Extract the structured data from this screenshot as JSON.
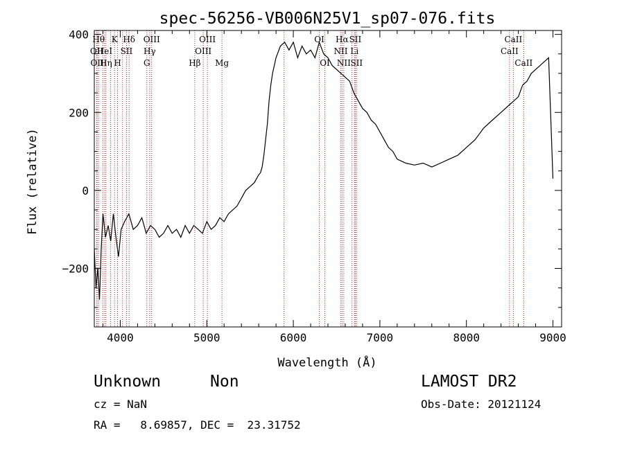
{
  "chart_data": {
    "type": "line",
    "title": "spec-56256-VB006N25V1_sp07-076.fits",
    "xlabel": "Wavelength (Å)",
    "ylabel": "Flux (relative)",
    "xlim": [
      3700,
      9100
    ],
    "ylim": [
      -350,
      410
    ],
    "xticks": [
      4000,
      5000,
      6000,
      7000,
      8000,
      9000
    ],
    "xtick_labels": [
      "4000",
      "5000",
      "6000",
      "7000",
      "8000",
      "9000"
    ],
    "yticks": [
      -200,
      0,
      200,
      400
    ],
    "ytick_labels": [
      "−200",
      "0",
      "200",
      "400"
    ],
    "grid": false,
    "series": [
      {
        "x": [
          3700,
          3720,
          3740,
          3760,
          3780,
          3800,
          3830,
          3860,
          3890,
          3920,
          3950,
          3980,
          4010,
          4050,
          4100,
          4150,
          4200,
          4250,
          4300,
          4350,
          4400,
          4450,
          4500,
          4550,
          4600,
          4650,
          4700,
          4750,
          4800,
          4850,
          4900,
          4950,
          5000,
          5050,
          5100,
          5150,
          5200,
          5250,
          5300,
          5350,
          5400,
          5450,
          5500,
          5550,
          5600,
          5620,
          5640,
          5660,
          5680,
          5700,
          5720,
          5740,
          5760,
          5780,
          5800,
          5850,
          5900,
          5950,
          6000,
          6050,
          6100,
          6150,
          6200,
          6250,
          6300,
          6350,
          6400,
          6450,
          6500,
          6550,
          6600,
          6650,
          6700,
          6750,
          6800,
          6850,
          6900,
          6950,
          7000,
          7050,
          7100,
          7150,
          7200,
          7300,
          7400,
          7500,
          7600,
          7700,
          7800,
          7900,
          8000,
          8100,
          8200,
          8300,
          8400,
          8500,
          8550,
          8600,
          8650,
          8700,
          8750,
          8800,
          8850,
          8900,
          8950,
          9000
        ],
        "y": [
          -150,
          -250,
          -200,
          -280,
          -150,
          -60,
          -120,
          -90,
          -130,
          -60,
          -120,
          -170,
          -100,
          -80,
          -60,
          -100,
          -90,
          -70,
          -110,
          -90,
          -100,
          -120,
          -110,
          -90,
          -110,
          -100,
          -120,
          -90,
          -110,
          -90,
          -100,
          -110,
          -80,
          -100,
          -90,
          -70,
          -80,
          -60,
          -50,
          -40,
          -20,
          0,
          10,
          20,
          40,
          45,
          60,
          90,
          130,
          170,
          230,
          270,
          300,
          320,
          340,
          370,
          380,
          360,
          380,
          340,
          370,
          350,
          360,
          340,
          380,
          350,
          340,
          320,
          310,
          300,
          290,
          280,
          250,
          230,
          210,
          200,
          180,
          170,
          150,
          130,
          110,
          100,
          80,
          70,
          65,
          70,
          60,
          70,
          80,
          90,
          110,
          130,
          160,
          180,
          200,
          220,
          230,
          240,
          270,
          280,
          300,
          310,
          320,
          330,
          340,
          30
        ]
      }
    ],
    "line_markers": [
      {
        "x": 3750,
        "label": "Hθ",
        "row": 0
      },
      {
        "x": 3728,
        "label": "OII",
        "row": 1
      },
      {
        "x": 3733,
        "label": "OII",
        "row": 2
      },
      {
        "x": 3798,
        "label": "",
        "row": 0
      },
      {
        "x": 3820,
        "label": "HeI",
        "row": 1
      },
      {
        "x": 3835,
        "label": "Hη",
        "row": 2
      },
      {
        "x": 3889,
        "label": "",
        "row": 0
      },
      {
        "x": 3934,
        "label": "K",
        "row": 0
      },
      {
        "x": 3969,
        "label": "H",
        "row": 2
      },
      {
        "x": 4026,
        "label": "",
        "row": 1
      },
      {
        "x": 4072,
        "label": "SII",
        "row": 1
      },
      {
        "x": 4102,
        "label": "Hδ",
        "row": 0
      },
      {
        "x": 4307,
        "label": "G",
        "row": 2
      },
      {
        "x": 4340,
        "label": "Hγ",
        "row": 1
      },
      {
        "x": 4363,
        "label": "OIII",
        "row": 0
      },
      {
        "x": 4861,
        "label": "Hβ",
        "row": 2
      },
      {
        "x": 4959,
        "label": "OIII",
        "row": 1
      },
      {
        "x": 5007,
        "label": "OIII",
        "row": 0
      },
      {
        "x": 5175,
        "label": "Mg",
        "row": 2
      },
      {
        "x": 5893,
        "label": "",
        "row": 0
      },
      {
        "x": 6300,
        "label": "OI",
        "row": 0
      },
      {
        "x": 6364,
        "label": "OI",
        "row": 2
      },
      {
        "x": 6548,
        "label": "NII",
        "row": 1
      },
      {
        "x": 6563,
        "label": "Hα",
        "row": 0
      },
      {
        "x": 6583,
        "label": "NII",
        "row": 2
      },
      {
        "x": 6678,
        "label": "",
        "row": 0
      },
      {
        "x": 6707,
        "label": "Li",
        "row": 1
      },
      {
        "x": 6716,
        "label": "SII",
        "row": 0
      },
      {
        "x": 6731,
        "label": "SII",
        "row": 2
      },
      {
        "x": 8498,
        "label": "CaII",
        "row": 1
      },
      {
        "x": 8542,
        "label": "CaII",
        "row": 0
      },
      {
        "x": 8662,
        "label": "CaII",
        "row": 2
      }
    ]
  },
  "footer": {
    "object_class": "Unknown",
    "object_subclass": "Non",
    "survey": "LAMOST DR2",
    "redshift": "cz = NaN",
    "obs_date": "Obs-Date: 20121124",
    "coords": "RA =   8.69857, DEC =  23.31752"
  }
}
